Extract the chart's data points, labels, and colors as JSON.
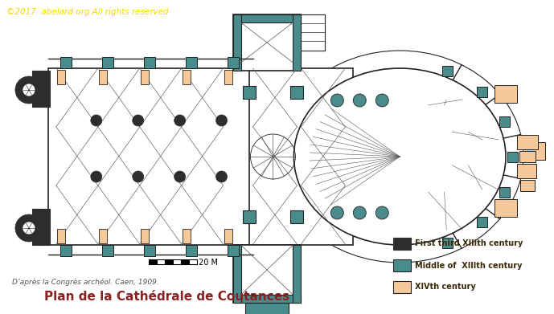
{
  "title": "Plan de la Cathédrale de Coutances",
  "subtitle": "D’après la Congrès archéol. Caen, 1909.",
  "copyright": "©2017  abelard.org All rights reserved",
  "legend_items": [
    {
      "label": "First third XIIIth century",
      "color": "#2d2d2d"
    },
    {
      "label": "Middle of  XIIIth century",
      "color": "#4a8c8c"
    },
    {
      "label": "XIVth century",
      "color": "#f5c99a"
    }
  ],
  "scale_label": "20 M",
  "bg_color": "#ffffff",
  "copyright_color": "#f5d800",
  "title_color": "#8b2020",
  "subtitle_color": "#555555",
  "outline_col": "#222222",
  "line_col": "#555555",
  "fig_width": 6.89,
  "fig_height": 3.91,
  "dpi": 100
}
